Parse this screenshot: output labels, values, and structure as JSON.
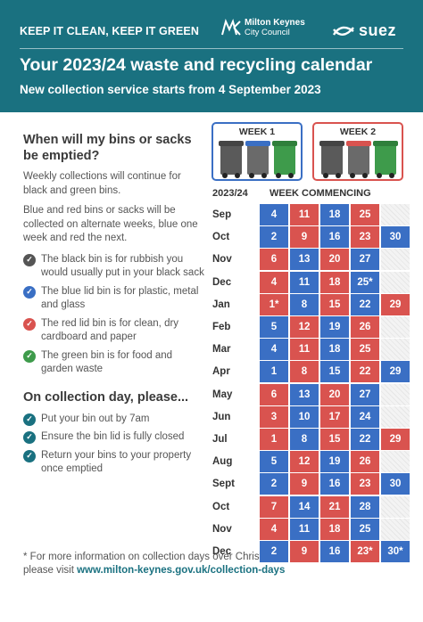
{
  "header": {
    "tagline": "KEEP IT CLEAN, KEEP IT GREEN",
    "council_name": "Milton Keynes",
    "council_sub": "City Council",
    "partner": "suez",
    "title": "Your 2023/24 waste and recycling calendar",
    "subtitle": "New collection service starts from 4 September 2023"
  },
  "intro": {
    "heading": "When will my bins or sacks be emptied?",
    "para1": "Weekly collections will continue for black and green bins.",
    "para2": "Blue and red bins or sacks will be collected on alternate weeks, blue one week and red the next."
  },
  "bins": [
    {
      "color": "black",
      "text": "The black bin is for rubbish you would usually put in your black sack"
    },
    {
      "color": "blue",
      "text": "The blue lid bin is for plastic, metal and glass"
    },
    {
      "color": "red",
      "text": "The red lid bin is for clean, dry cardboard and paper"
    },
    {
      "color": "green",
      "text": "The green bin is for food and garden waste"
    }
  ],
  "collection_day": {
    "heading": "On collection day, please...",
    "items": [
      "Put your bin out by 7am",
      "Ensure the bin lid is fully closed",
      "Return your bins to your property once emptied"
    ]
  },
  "footnote": {
    "text": "* For more information on collection days over Christmas, please visit ",
    "url": "www.milton-keynes.gov.uk/collection-days"
  },
  "weeks": {
    "week1": "WEEK 1",
    "week2": "WEEK 2"
  },
  "calendar": {
    "year_label": "2023/24",
    "col_label": "WEEK COMMENCING",
    "rows": [
      {
        "month": "Sep",
        "days": [
          "4",
          "11",
          "18",
          "25",
          ""
        ],
        "colors": [
          "blue",
          "red",
          "blue",
          "red",
          "blank"
        ]
      },
      {
        "month": "Oct",
        "days": [
          "2",
          "9",
          "16",
          "23",
          "30"
        ],
        "colors": [
          "blue",
          "red",
          "blue",
          "red",
          "blue"
        ]
      },
      {
        "month": "Nov",
        "days": [
          "6",
          "13",
          "20",
          "27",
          ""
        ],
        "colors": [
          "red",
          "blue",
          "red",
          "blue",
          "blank"
        ]
      },
      {
        "month": "Dec",
        "days": [
          "4",
          "11",
          "18",
          "25*",
          ""
        ],
        "colors": [
          "red",
          "blue",
          "red",
          "blue",
          "blank"
        ]
      },
      {
        "month": "Jan",
        "days": [
          "1*",
          "8",
          "15",
          "22",
          "29"
        ],
        "colors": [
          "red",
          "blue",
          "red",
          "blue",
          "red"
        ]
      },
      {
        "month": "Feb",
        "days": [
          "5",
          "12",
          "19",
          "26",
          ""
        ],
        "colors": [
          "blue",
          "red",
          "blue",
          "red",
          "blank"
        ]
      },
      {
        "month": "Mar",
        "days": [
          "4",
          "11",
          "18",
          "25",
          ""
        ],
        "colors": [
          "blue",
          "red",
          "blue",
          "red",
          "blank"
        ]
      },
      {
        "month": "Apr",
        "days": [
          "1",
          "8",
          "15",
          "22",
          "29"
        ],
        "colors": [
          "blue",
          "red",
          "blue",
          "red",
          "blue"
        ]
      },
      {
        "month": "May",
        "days": [
          "6",
          "13",
          "20",
          "27",
          ""
        ],
        "colors": [
          "red",
          "blue",
          "red",
          "blue",
          "blank"
        ]
      },
      {
        "month": "Jun",
        "days": [
          "3",
          "10",
          "17",
          "24",
          ""
        ],
        "colors": [
          "red",
          "blue",
          "red",
          "blue",
          "blank"
        ]
      },
      {
        "month": "Jul",
        "days": [
          "1",
          "8",
          "15",
          "22",
          "29"
        ],
        "colors": [
          "red",
          "blue",
          "red",
          "blue",
          "red"
        ]
      },
      {
        "month": "Aug",
        "days": [
          "5",
          "12",
          "19",
          "26",
          ""
        ],
        "colors": [
          "blue",
          "red",
          "blue",
          "red",
          "blank"
        ]
      },
      {
        "month": "Sept",
        "days": [
          "2",
          "9",
          "16",
          "23",
          "30"
        ],
        "colors": [
          "blue",
          "red",
          "blue",
          "red",
          "blue"
        ]
      },
      {
        "month": "Oct",
        "days": [
          "7",
          "14",
          "21",
          "28",
          ""
        ],
        "colors": [
          "red",
          "blue",
          "red",
          "blue",
          "blank"
        ]
      },
      {
        "month": "Nov",
        "days": [
          "4",
          "11",
          "18",
          "25",
          ""
        ],
        "colors": [
          "red",
          "blue",
          "red",
          "blue",
          "blank"
        ]
      },
      {
        "month": "Dec",
        "days": [
          "2",
          "9",
          "16",
          "23*",
          "30*"
        ],
        "colors": [
          "blue",
          "red",
          "blue",
          "red",
          "blue"
        ]
      }
    ]
  },
  "colors": {
    "teal": "#1a7180",
    "blue": "#3a6fc4",
    "red": "#d9534f",
    "green": "#3e9b4b"
  }
}
